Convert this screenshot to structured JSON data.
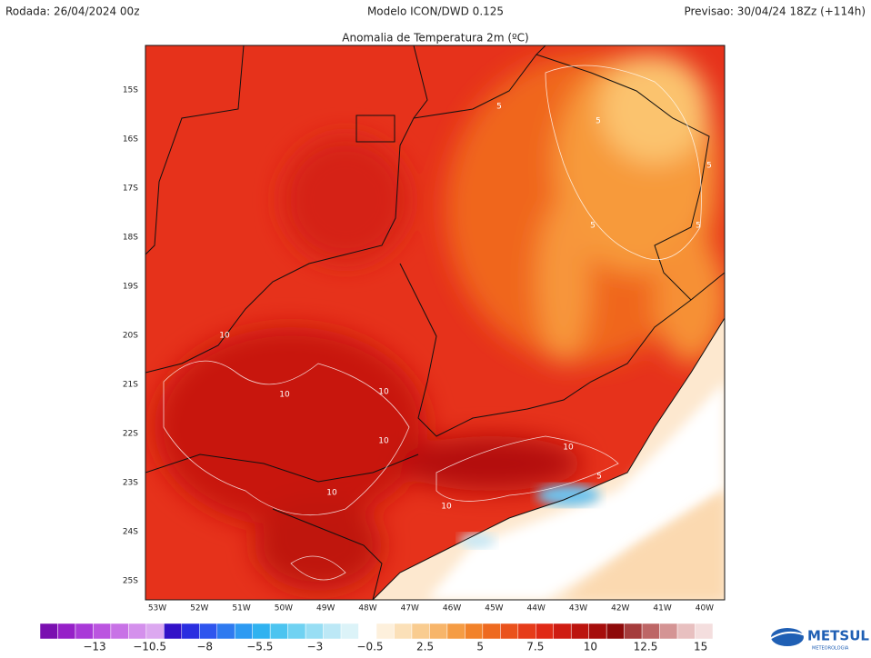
{
  "header": {
    "run": "Rodada: 26/04/2024 00z",
    "model": "Modelo ICON/DWD 0.125",
    "forecast": "Previsao: 30/04/24 18Zz (+114h)",
    "title": "Anomalia de Temperatura 2m (ºC)"
  },
  "map": {
    "lat_labels": [
      "15S",
      "16S",
      "17S",
      "18S",
      "19S",
      "20S",
      "21S",
      "22S",
      "23S",
      "24S",
      "25S"
    ],
    "lon_labels": [
      "53W",
      "52W",
      "51W",
      "50W",
      "49W",
      "48W",
      "47W",
      "46W",
      "45W",
      "44W",
      "43W",
      "42W",
      "41W",
      "40W"
    ],
    "contour_labels": [
      "5",
      "5",
      "5",
      "5",
      "5",
      "10",
      "10",
      "10",
      "10",
      "10",
      "10",
      "10",
      "5"
    ]
  },
  "colorbar": {
    "labels": [
      "−13",
      "−10.5",
      "−8",
      "−5.5",
      "−3",
      "−0.5",
      "2.5",
      "5",
      "7.5",
      "10",
      "12.5",
      "15"
    ]
  },
  "logo": {
    "name": "METSUL",
    "tagline": "METEOROLOGIA"
  }
}
